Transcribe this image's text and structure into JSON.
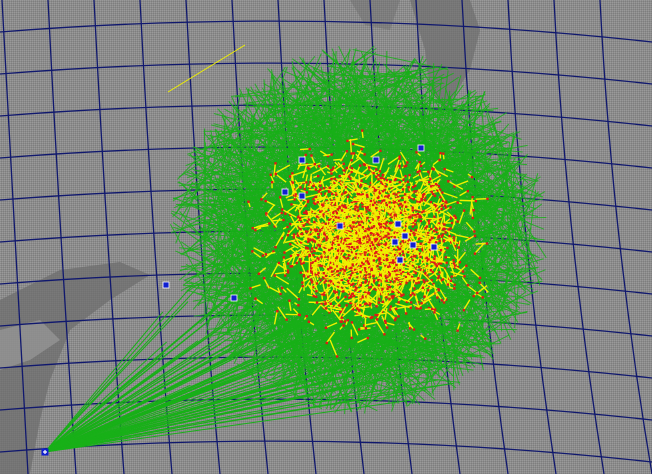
{
  "map": {
    "colors": {
      "sea": "#8c8c8c",
      "land": "#6e6e6e",
      "land_light": "#a8a8a8",
      "grid": "#10186e",
      "link": "#18b018",
      "vector": "#f0f000",
      "vector_head": "#e01818",
      "station": "#1020d0"
    },
    "icons": {
      "station": "station-marker-icon",
      "hub": "hub-station-icon"
    }
  }
}
